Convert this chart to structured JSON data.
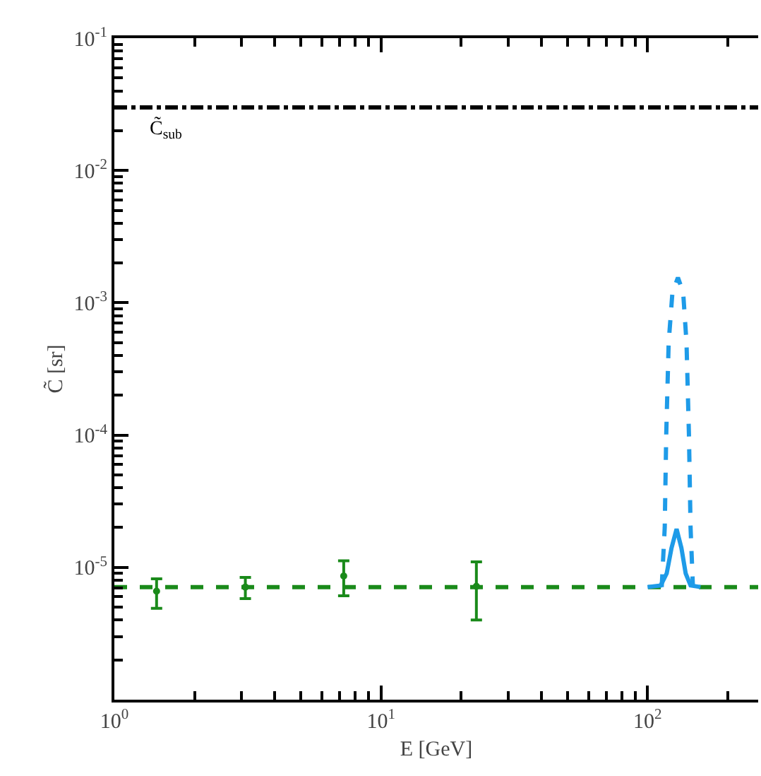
{
  "chart_data": {
    "type": "scatter",
    "xlabel": "E [GeV]",
    "ylabel": "C̃ [sr]",
    "log": "xy",
    "grid": false,
    "xlim": [
      1,
      260
    ],
    "xticks": [
      {
        "value": 1,
        "label": "10$^{0}$"
      },
      {
        "value": 10,
        "label": "10$^{1}$"
      },
      {
        "value": 100,
        "label": "10$^{2}$"
      }
    ],
    "ylim": [
      1e-06,
      0.1
    ],
    "yticks": [
      {
        "value": 1e-05,
        "label": "10$^{-5}$"
      },
      {
        "value": 0.0001,
        "label": "10$^{-4}$"
      },
      {
        "value": 0.001,
        "label": "10$^{-3}$"
      },
      {
        "value": 0.01,
        "label": "10$^{-2}$"
      },
      {
        "value": 0.1,
        "label": "10$^{-1}$"
      }
    ],
    "ref_lines": [
      {
        "axis": "y",
        "value": 0.03,
        "label": "C̃$_{sub}$",
        "color": "#000000",
        "line_style": "dashdot"
      },
      {
        "axis": "y",
        "value": 7.1e-06,
        "label": null,
        "color": "#1a8a1a",
        "line_style": "dashed"
      }
    ],
    "series": [
      {
        "color": "#1a8a1a",
        "marker": "circle",
        "x": [
          1.44,
          3.1,
          7.25,
          22.8
        ],
        "values": [
          6.6e-06,
          7.1e-06,
          8.6e-06,
          7.2e-06
        ],
        "errors": [
          [
            4.9e-06,
            8.2e-06
          ],
          [
            5.8e-06,
            8.4e-06
          ],
          [
            6.1e-06,
            1.12e-05
          ],
          [
            4e-06,
            1.1e-05
          ]
        ]
      },
      {
        "type": "line",
        "color": "#1e9be8",
        "line_style": "solid",
        "marker": "none",
        "x": [
          100,
          112,
          118,
          123,
          128.5,
          134,
          139,
          145,
          158
        ],
        "values": [
          7.1e-06,
          7.3e-06,
          9e-06,
          1.4e-05,
          1.95e-05,
          1.4e-05,
          9e-06,
          7.3e-06,
          7.1e-06
        ]
      },
      {
        "type": "line",
        "color": "#1e9be8",
        "line_style": "dashed",
        "marker": "none",
        "x": [
          113,
          116,
          117.5,
          120,
          124,
          130,
          136,
          140,
          143,
          145,
          148
        ],
        "values": [
          7.1e-06,
          2e-05,
          0.0001,
          0.0005,
          0.0012,
          0.00155,
          0.0012,
          0.0005,
          0.0001,
          2e-05,
          7.1e-06
        ]
      }
    ]
  }
}
